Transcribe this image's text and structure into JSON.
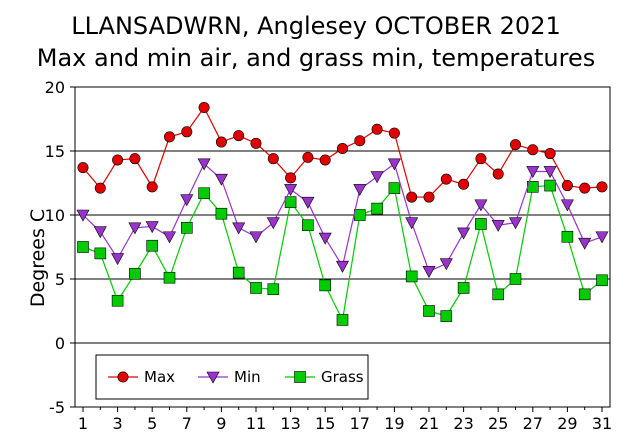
{
  "chart_data": {
    "type": "line",
    "title": "LLANSADWRN, Anglesey OCTOBER 2021",
    "subtitle": "Max and min air, and grass min, temperatures",
    "xlabel": "",
    "ylabel": "Degrees C",
    "xlim": [
      1,
      31
    ],
    "ylim": [
      -5,
      20
    ],
    "yticks": [
      -5,
      0,
      5,
      10,
      15,
      20
    ],
    "xticks": [
      1,
      3,
      5,
      7,
      9,
      11,
      13,
      15,
      17,
      19,
      21,
      23,
      25,
      27,
      29,
      31
    ],
    "grid": "horizontal",
    "legend_position": "bottom-left",
    "x": [
      1,
      2,
      3,
      4,
      5,
      6,
      7,
      8,
      9,
      10,
      11,
      12,
      13,
      14,
      15,
      16,
      17,
      18,
      19,
      20,
      21,
      22,
      23,
      24,
      25,
      26,
      27,
      28,
      29,
      30,
      31
    ],
    "series": [
      {
        "name": "Max",
        "color": "#e00000",
        "marker": "circle",
        "values": [
          13.7,
          12.1,
          14.3,
          14.4,
          12.2,
          16.1,
          16.5,
          18.4,
          15.7,
          16.2,
          15.6,
          14.4,
          12.9,
          14.5,
          14.3,
          15.2,
          15.8,
          16.7,
          16.4,
          11.4,
          11.4,
          12.8,
          12.4,
          14.4,
          13.2,
          15.5,
          15.1,
          14.8,
          12.3,
          12.1,
          12.2
        ]
      },
      {
        "name": "Min",
        "color": "#9933cc",
        "marker": "triangle-down",
        "values": [
          10.0,
          8.7,
          6.6,
          9.0,
          9.1,
          8.3,
          11.2,
          14.0,
          12.8,
          9.0,
          8.3,
          9.4,
          12.0,
          11.0,
          8.2,
          6.0,
          12.0,
          13.0,
          14.0,
          9.4,
          5.6,
          6.2,
          8.6,
          10.8,
          9.2,
          9.4,
          13.4,
          13.4,
          10.8,
          7.8,
          8.3
        ]
      },
      {
        "name": "Grass",
        "color": "#00cc00",
        "marker": "square",
        "values": [
          7.5,
          7.0,
          3.3,
          5.4,
          7.6,
          5.1,
          9.0,
          11.7,
          10.1,
          5.5,
          4.3,
          4.2,
          11.0,
          9.2,
          4.5,
          1.8,
          10.0,
          10.5,
          12.1,
          5.2,
          2.5,
          2.1,
          4.3,
          9.3,
          3.8,
          5.0,
          12.2,
          12.3,
          8.3,
          3.8,
          4.9
        ]
      }
    ]
  }
}
